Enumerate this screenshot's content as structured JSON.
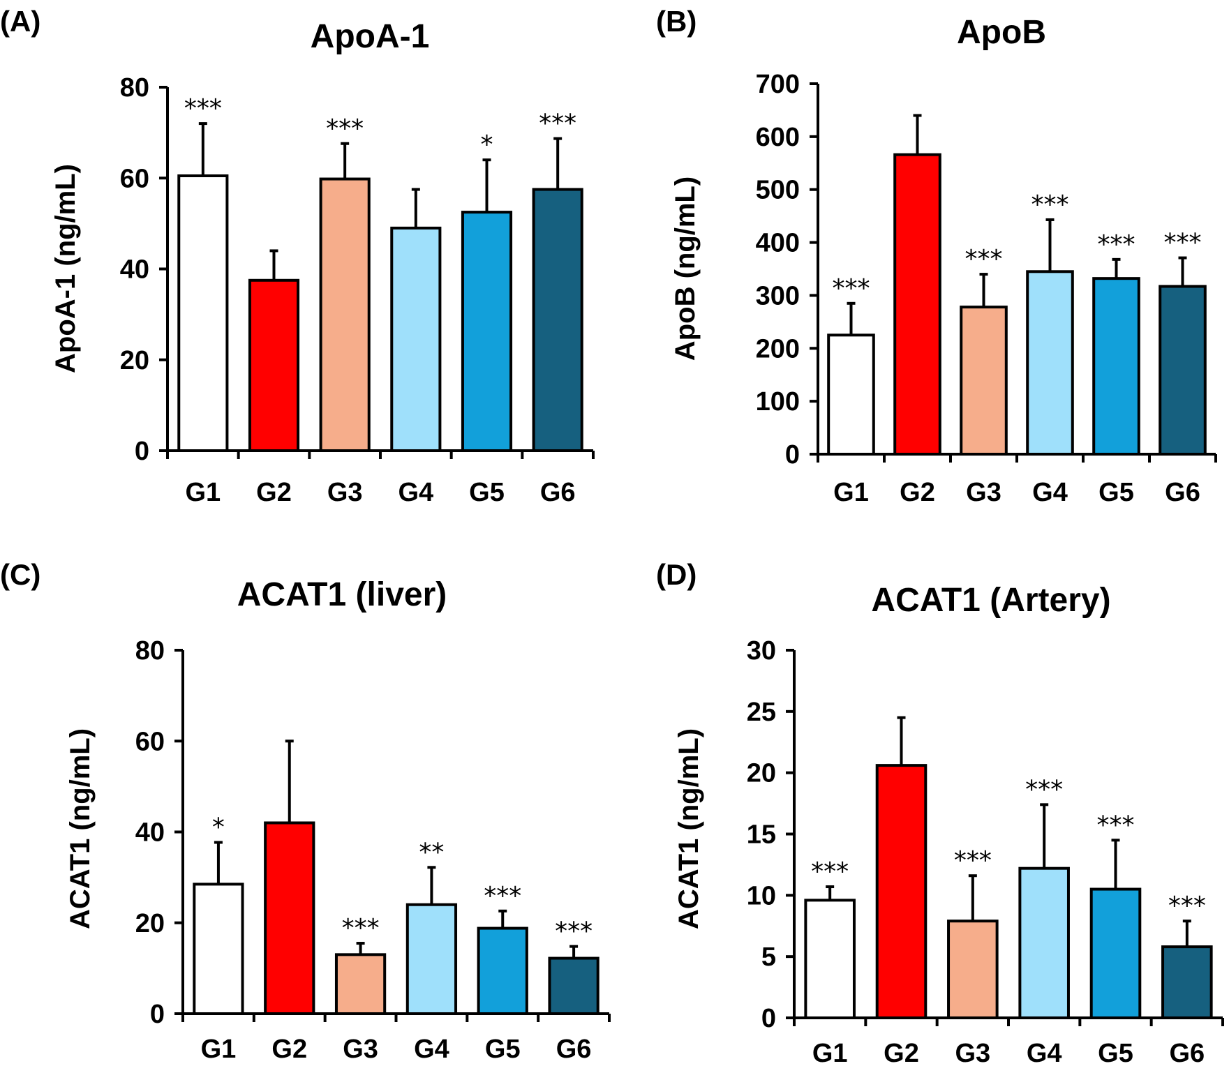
{
  "chart_data": [
    {
      "panel": "(A)",
      "type": "bar",
      "title": "ApoA-1",
      "ylabel": "ApoA-1 (ng/mL)",
      "xlabel": "",
      "ylim": [
        0,
        80
      ],
      "yticks": [
        0,
        20,
        40,
        60,
        80
      ],
      "categories": [
        "G1",
        "G2",
        "G3",
        "G4",
        "G5",
        "G6"
      ],
      "values": [
        60.5,
        37.5,
        59.8,
        49,
        52.5,
        57.5
      ],
      "errors": [
        11.5,
        6.5,
        7.8,
        8.5,
        11.5,
        11.2
      ],
      "significance": [
        "***",
        "",
        "***",
        "",
        "*",
        "***"
      ],
      "colors": [
        "#ffffff",
        "#ff0000",
        "#f6ad8b",
        "#9fe0fb",
        "#12a0da",
        "#16607f"
      ]
    },
    {
      "panel": "(B)",
      "type": "bar",
      "title": "ApoB",
      "ylabel": "ApoB (ng/mL)",
      "xlabel": "",
      "ylim": [
        0,
        700
      ],
      "yticks": [
        0,
        100,
        200,
        300,
        400,
        500,
        600,
        700
      ],
      "categories": [
        "G1",
        "G2",
        "G3",
        "G4",
        "G5",
        "G6"
      ],
      "values": [
        225,
        566,
        278,
        345,
        332,
        317
      ],
      "errors": [
        60,
        74,
        62,
        98,
        36,
        54
      ],
      "significance": [
        "***",
        "",
        "***",
        "***",
        "***",
        "***"
      ],
      "colors": [
        "#ffffff",
        "#ff0000",
        "#f6ad8b",
        "#9fe0fb",
        "#12a0da",
        "#16607f"
      ]
    },
    {
      "panel": "(C)",
      "type": "bar",
      "title": "ACAT1 (liver)",
      "ylabel": "ACAT1 (ng/mL)",
      "xlabel": "",
      "ylim": [
        0,
        80
      ],
      "yticks": [
        0,
        20,
        40,
        60,
        80
      ],
      "categories": [
        "G1",
        "G2",
        "G3",
        "G4",
        "G5",
        "G6"
      ],
      "values": [
        28.5,
        42,
        13,
        24,
        18.8,
        12.2
      ],
      "errors": [
        9.2,
        18,
        2.5,
        8.2,
        3.8,
        2.6
      ],
      "significance": [
        "*",
        "",
        "***",
        "**",
        "***",
        "***"
      ],
      "colors": [
        "#ffffff",
        "#ff0000",
        "#f6ad8b",
        "#9fe0fb",
        "#12a0da",
        "#16607f"
      ]
    },
    {
      "panel": "(D)",
      "type": "bar",
      "title": "ACAT1 (Artery)",
      "ylabel": "ACAT1 (ng/mL)",
      "xlabel": "",
      "ylim": [
        0,
        30
      ],
      "yticks": [
        0,
        5,
        10,
        15,
        20,
        25,
        30
      ],
      "categories": [
        "G1",
        "G2",
        "G3",
        "G4",
        "G5",
        "G6"
      ],
      "values": [
        9.6,
        20.6,
        7.9,
        12.2,
        10.5,
        5.8
      ],
      "errors": [
        1.1,
        3.9,
        3.7,
        5.2,
        4.0,
        2.1
      ],
      "significance": [
        "***",
        "",
        "***",
        "***",
        "***",
        "***"
      ],
      "colors": [
        "#ffffff",
        "#ff0000",
        "#f6ad8b",
        "#9fe0fb",
        "#12a0da",
        "#16607f"
      ]
    }
  ]
}
